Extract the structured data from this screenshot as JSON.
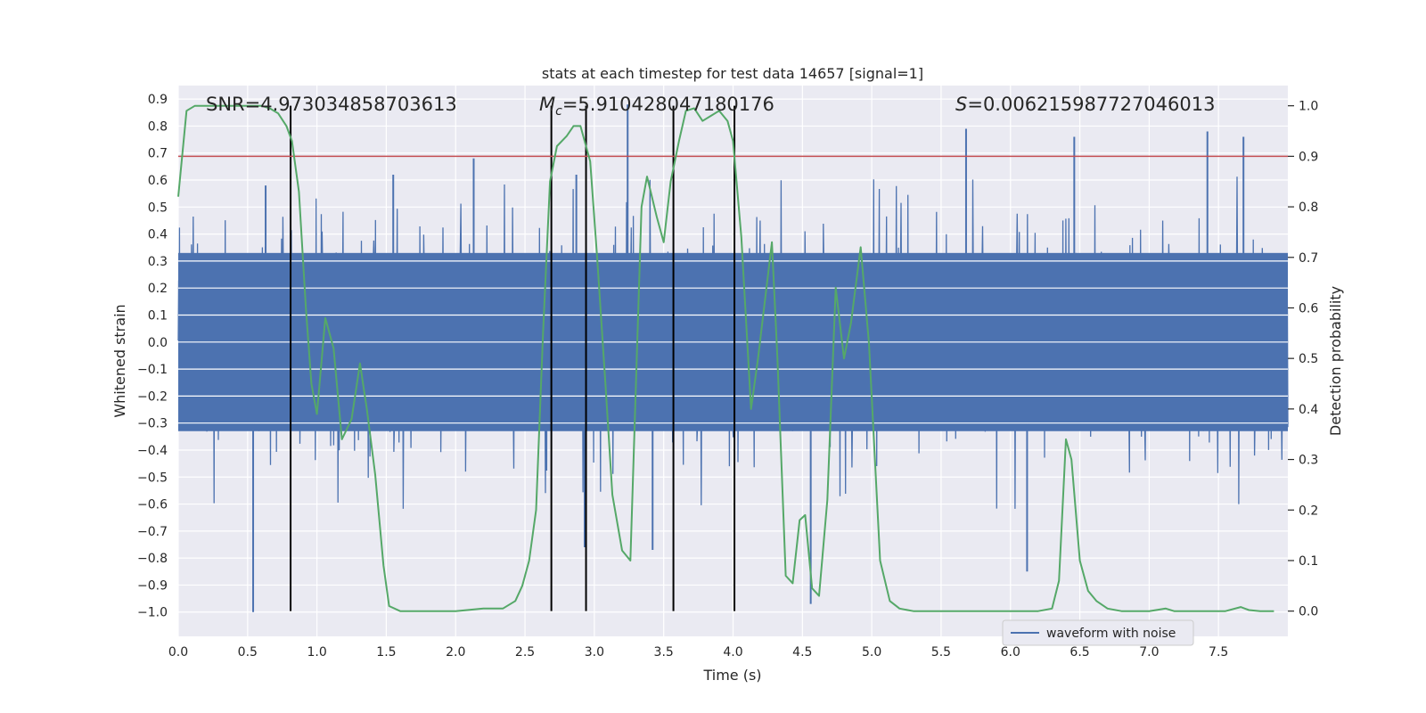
{
  "chart_data": {
    "type": "line",
    "title": "stats at each timestep for test data 14657 [signal=1]",
    "xlabel": "Time (s)",
    "ylabel_left": "Whitened strain",
    "ylabel_right": "Detection probability",
    "xlim": [
      0.0,
      8.0
    ],
    "ylim_left": [
      -1.09,
      0.95
    ],
    "ylim_right": [
      -0.05,
      1.04
    ],
    "x_ticks": [
      "0.0",
      "0.5",
      "1.0",
      "1.5",
      "2.0",
      "2.5",
      "3.0",
      "3.5",
      "4.0",
      "4.5",
      "5.0",
      "5.5",
      "6.0",
      "6.5",
      "7.0",
      "7.5"
    ],
    "y_ticks_left": [
      "0.9",
      "0.8",
      "0.7",
      "0.6",
      "0.5",
      "0.4",
      "0.3",
      "0.2",
      "0.1",
      "0.0",
      "−0.1",
      "−0.2",
      "−0.3",
      "−0.4",
      "−0.5",
      "−0.6",
      "−0.7",
      "−0.8",
      "−0.9",
      "−1.0"
    ],
    "y_ticks_right": [
      "1.0",
      "0.9",
      "0.8",
      "0.7",
      "0.6",
      "0.5",
      "0.4",
      "0.3",
      "0.2",
      "0.1",
      "0.0"
    ],
    "annotations": {
      "snr": "SNR=4.973034858703613",
      "mc": "M c=5.910428047180176",
      "mc_symbol": "M",
      "mc_sub": "c",
      "mc_value": "=5.910428047180176",
      "s_symbol": "S",
      "s_value": "=0.006215987727046013"
    },
    "legend": [
      "waveform with noise"
    ],
    "threshold_probability": 0.9,
    "vertical_lines_s": [
      0.81,
      2.69,
      2.94,
      3.57,
      4.01
    ],
    "waveform": {
      "name": "waveform with noise",
      "core_amplitude": 0.33,
      "peak_spikes": [
        {
          "t": 0.54,
          "v": -1.0
        },
        {
          "t": 0.63,
          "v": 0.58
        },
        {
          "t": 1.55,
          "v": 0.62
        },
        {
          "t": 2.13,
          "v": 0.68
        },
        {
          "t": 2.87,
          "v": 0.62
        },
        {
          "t": 2.93,
          "v": -0.76
        },
        {
          "t": 3.24,
          "v": 0.88
        },
        {
          "t": 3.42,
          "v": -0.77
        },
        {
          "t": 4.56,
          "v": -0.97
        },
        {
          "t": 5.68,
          "v": 0.79
        },
        {
          "t": 6.12,
          "v": -0.85
        },
        {
          "t": 6.46,
          "v": 0.76
        },
        {
          "t": 7.42,
          "v": 0.78
        },
        {
          "t": 7.68,
          "v": 0.76
        }
      ]
    },
    "detection_probability": {
      "t": [
        0.0,
        0.06,
        0.12,
        0.2,
        0.3,
        0.4,
        0.5,
        0.6,
        0.66,
        0.72,
        0.78,
        0.82,
        0.87,
        0.92,
        0.96,
        1.0,
        1.06,
        1.12,
        1.18,
        1.25,
        1.31,
        1.36,
        1.42,
        1.48,
        1.52,
        1.6,
        1.8,
        2.0,
        2.2,
        2.34,
        2.43,
        2.48,
        2.53,
        2.58,
        2.63,
        2.68,
        2.73,
        2.8,
        2.85,
        2.9,
        2.97,
        3.02,
        3.08,
        3.13,
        3.2,
        3.26,
        3.34,
        3.38,
        3.45,
        3.5,
        3.55,
        3.61,
        3.66,
        3.72,
        3.78,
        3.84,
        3.9,
        3.96,
        4.0,
        4.06,
        4.13,
        4.18,
        4.28,
        4.32,
        4.38,
        4.43,
        4.48,
        4.52,
        4.57,
        4.62,
        4.68,
        4.74,
        4.8,
        4.85,
        4.92,
        4.98,
        5.06,
        5.13,
        5.2,
        5.3,
        5.5,
        6.0,
        6.2,
        6.3,
        6.35,
        6.4,
        6.44,
        6.5,
        6.56,
        6.62,
        6.7,
        6.8,
        6.9,
        7.0,
        7.05,
        7.12,
        7.18,
        7.3,
        7.45,
        7.55,
        7.66,
        7.72,
        7.8,
        7.9
      ],
      "p": [
        0.82,
        0.99,
        1.0,
        1.0,
        1.0,
        1.0,
        1.0,
        1.0,
        0.995,
        0.985,
        0.96,
        0.93,
        0.83,
        0.6,
        0.45,
        0.39,
        0.58,
        0.52,
        0.34,
        0.38,
        0.49,
        0.4,
        0.27,
        0.09,
        0.01,
        0.0,
        0.0,
        0.0,
        0.005,
        0.005,
        0.02,
        0.05,
        0.1,
        0.2,
        0.55,
        0.85,
        0.92,
        0.94,
        0.96,
        0.96,
        0.89,
        0.7,
        0.45,
        0.23,
        0.12,
        0.1,
        0.8,
        0.86,
        0.78,
        0.73,
        0.85,
        0.93,
        0.99,
        0.995,
        0.97,
        0.98,
        0.99,
        0.97,
        0.93,
        0.74,
        0.4,
        0.5,
        0.73,
        0.5,
        0.07,
        0.055,
        0.18,
        0.19,
        0.045,
        0.03,
        0.22,
        0.64,
        0.5,
        0.57,
        0.72,
        0.53,
        0.1,
        0.02,
        0.005,
        0.0,
        0.0,
        0.0,
        0.0,
        0.005,
        0.06,
        0.34,
        0.3,
        0.1,
        0.04,
        0.02,
        0.005,
        0.0,
        0.0,
        0.0,
        0.002,
        0.005,
        0.0,
        0.0,
        0.0,
        0.0,
        0.008,
        0.002,
        0.0,
        0.0
      ]
    },
    "colors": {
      "waveform": "#4C72B0",
      "probability": "#55A868",
      "threshold": "#C44E52",
      "vlines": "#000000",
      "axes_bg": "#EAEAF2",
      "grid": "#FFFFFF"
    }
  }
}
